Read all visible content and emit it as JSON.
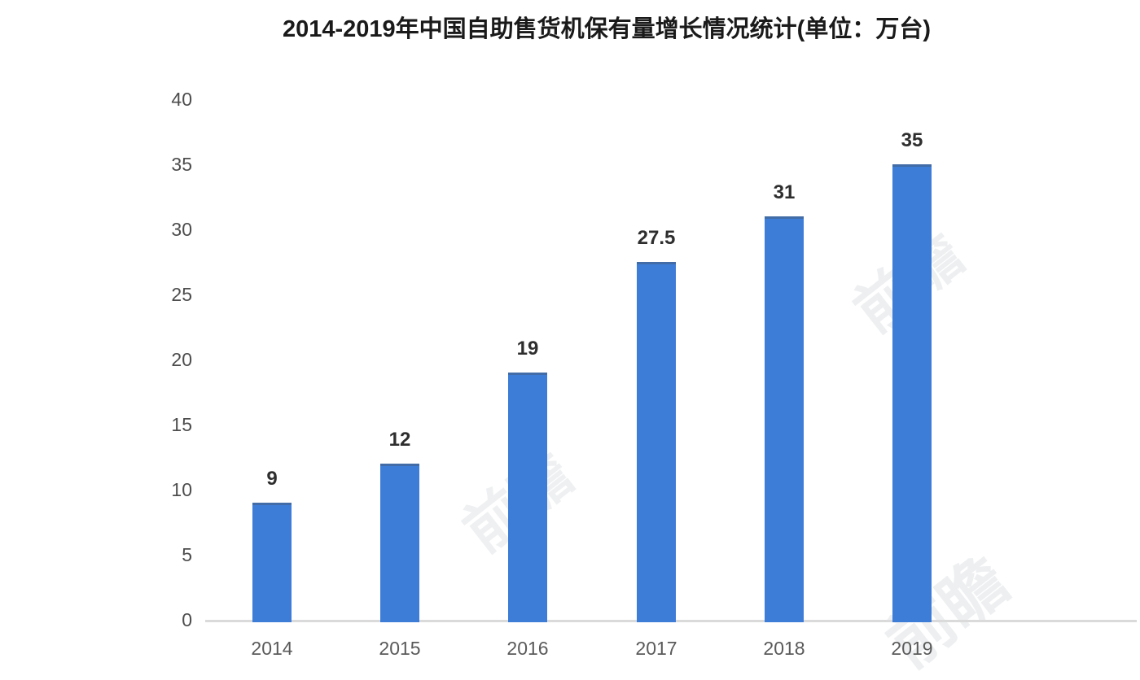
{
  "chart_data": {
    "type": "bar",
    "title": "2014-2019年中国自助售货机保有量增长情况统计(单位：万台)",
    "categories": [
      "2014",
      "2015",
      "2016",
      "2017",
      "2018",
      "2019"
    ],
    "values": [
      9,
      12,
      19,
      27.5,
      31,
      35
    ],
    "value_labels": [
      "9",
      "12",
      "19",
      "27.5",
      "31",
      "35"
    ],
    "xlabel": "",
    "ylabel": "",
    "ylim": [
      0,
      40
    ],
    "yticks": [
      0,
      5,
      10,
      15,
      20,
      25,
      30,
      35,
      40
    ],
    "grid": false,
    "legend": "none",
    "colors": {
      "bar": "#3e7dd7",
      "axis_line": "#dadada",
      "ytick_text": "#4d4d4d",
      "xtick_text": "#5a5a5a",
      "value_text": "#2e2e2e",
      "title_text": "#1a1a1a",
      "background": "#ffffff"
    }
  },
  "watermark": {
    "text": "前瞻"
  }
}
